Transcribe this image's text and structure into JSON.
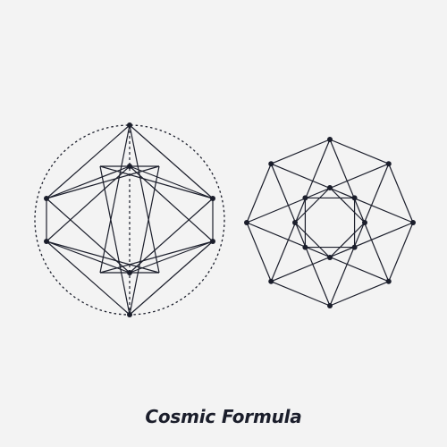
{
  "caption": "Cosmic Formula",
  "colors": {
    "background": "#f3f3f3",
    "ink": "#1b1e2b"
  },
  "figures": [
    {
      "name": "left-geometry-figure",
      "description_icon": "circled-octahedron-star-icon"
    },
    {
      "name": "right-geometry-figure",
      "description_icon": "octagram-star-icon"
    }
  ]
}
